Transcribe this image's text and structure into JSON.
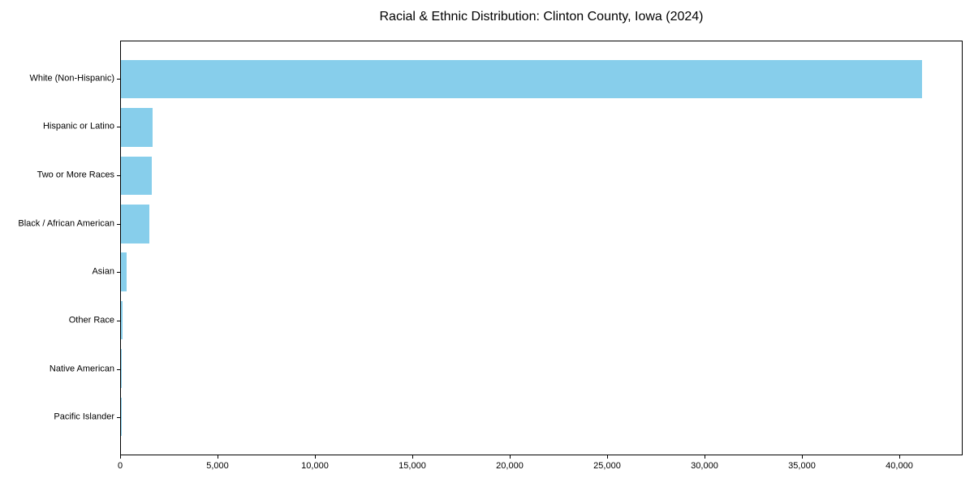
{
  "chart_data": {
    "type": "bar",
    "orientation": "horizontal",
    "title": "Racial & Ethnic Distribution: Clinton County, Iowa (2024)",
    "categories": [
      "White (Non-Hispanic)",
      "Hispanic or Latino",
      "Two or More Races",
      "Black / African American",
      "Asian",
      "Other Race",
      "Native American",
      "Pacific Islander"
    ],
    "values": [
      41200,
      1620,
      1580,
      1460,
      300,
      65,
      30,
      12
    ],
    "xlabel": "",
    "ylabel": "",
    "xlim": [
      0,
      43250
    ],
    "x_ticks": [
      0,
      5000,
      10000,
      15000,
      20000,
      25000,
      30000,
      35000,
      40000
    ],
    "x_tick_labels": [
      "0",
      "5,000",
      "10,000",
      "15,000",
      "20,000",
      "25,000",
      "30,000",
      "35,000",
      "40,000"
    ],
    "bar_color": "#87CEEB",
    "grid": false,
    "legend_position": "none",
    "frame": true
  }
}
